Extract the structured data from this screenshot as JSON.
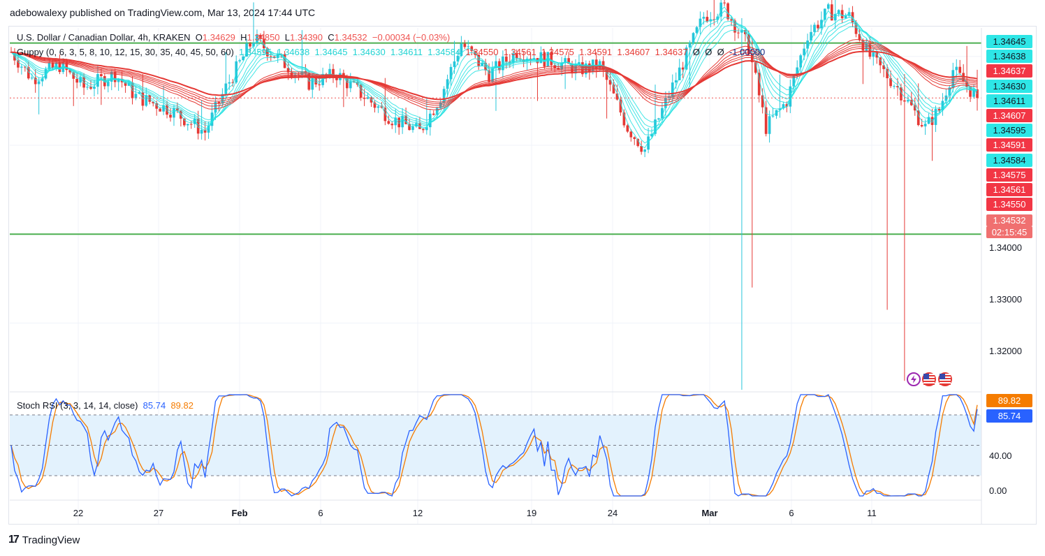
{
  "publisher": "adebowalexy published on TradingView.com, Mar 13, 2024 17:44 UTC",
  "main_legend": {
    "symbol": "U.S. Dollar / Canadian Dollar, 4h, KRAKEN",
    "o_label": "O",
    "o_value": "1.34629",
    "h_label": "H",
    "h_value": "1.34850",
    "l_label": "L",
    "l_value": "1.34390",
    "c_label": "C",
    "c_value": "1.34532",
    "change": "−0.00034 (−0.03%)"
  },
  "guppy_legend": {
    "name": "Guppy (0, 6, 3, 5, 8, 10, 12, 15, 30, 35, 40, 45, 50, 60)",
    "fast_values": [
      "1.34595",
      "1.34638",
      "1.34645",
      "1.34630",
      "1.34611",
      "1.34584"
    ],
    "slow_values": [
      "1.34550",
      "1.34561",
      "1.34575",
      "1.34591",
      "1.34607",
      "1.34637"
    ],
    "empty_marks": [
      "Ø",
      "Ø",
      "Ø"
    ],
    "last_value": "-1.00000"
  },
  "stoch_legend": {
    "name": "Stoch RSI (3, 3, 14, 14, close)",
    "k_value": "85.74",
    "d_value": "89.82"
  },
  "price_axis": {
    "ticks": [
      "1.34000",
      "1.33000",
      "1.32000"
    ],
    "badges": [
      {
        "text": "1.34645",
        "kind": "fast"
      },
      {
        "text": "1.34638",
        "kind": "fast"
      },
      {
        "text": "1.34637",
        "kind": "slow"
      },
      {
        "text": "1.34630",
        "kind": "fast"
      },
      {
        "text": "1.34611",
        "kind": "fast"
      },
      {
        "text": "1.34607",
        "kind": "slow"
      },
      {
        "text": "1.34595",
        "kind": "fast"
      },
      {
        "text": "1.34591",
        "kind": "slow"
      },
      {
        "text": "1.34584",
        "kind": "fast"
      },
      {
        "text": "1.34575",
        "kind": "slow"
      },
      {
        "text": "1.34561",
        "kind": "slow"
      },
      {
        "text": "1.34550",
        "kind": "slow"
      }
    ],
    "last_price": "1.34532",
    "countdown": "02:15:45"
  },
  "stoch_axis": {
    "ticks": [
      "40.00",
      "0.00"
    ],
    "d_badge": "89.82",
    "k_badge": "85.74"
  },
  "time_axis": [
    "22",
    "27",
    "Feb",
    "6",
    "12",
    "19",
    "24",
    "Mar",
    "6",
    "11"
  ],
  "footer": {
    "logo": "17",
    "brand": "TradingView"
  },
  "colors": {
    "up_candle": "#26c6da",
    "down_candle": "#e53935",
    "fast_ema": "#22e0e0",
    "slow_ema": "#e53935",
    "hline": "#4caf50",
    "stoch_k": "#2962ff",
    "stoch_d": "#f57c00",
    "stoch_band": "#e3f2fd",
    "badge_fast_bg": "#2ee6e6",
    "badge_slow_bg": "#f23645"
  },
  "chart_data": [
    {
      "type": "candlestick",
      "title": "U.S. Dollar / Canadian Dollar, 4h, KRAKEN",
      "x_ticks": [
        "22",
        "27",
        "Feb",
        "6",
        "12",
        "19",
        "24",
        "Mar",
        "6",
        "11"
      ],
      "y_ticks": [
        "1.34000",
        "1.33000",
        "1.32000"
      ],
      "ylim": [
        1.3125,
        1.3532
      ],
      "horizontal_lines": [
        1.3515,
        1.33
      ],
      "last": {
        "open": 1.34629,
        "high": 1.3485,
        "low": 1.3439,
        "close": 1.34532
      },
      "trend_anchors": [
        {
          "x": 0,
          "close": 1.3505
        },
        {
          "x": 6,
          "close": 1.3475
        },
        {
          "x": 14,
          "close": 1.349
        },
        {
          "x": 21,
          "close": 1.3465
        },
        {
          "x": 30,
          "close": 1.348
        },
        {
          "x": 36,
          "close": 1.3455
        },
        {
          "x": 46,
          "close": 1.344
        },
        {
          "x": 56,
          "close": 1.3415
        },
        {
          "x": 62,
          "close": 1.3465
        },
        {
          "x": 70,
          "close": 1.352
        },
        {
          "x": 78,
          "close": 1.3495
        },
        {
          "x": 86,
          "close": 1.347
        },
        {
          "x": 94,
          "close": 1.348
        },
        {
          "x": 102,
          "close": 1.3455
        },
        {
          "x": 110,
          "close": 1.343
        },
        {
          "x": 118,
          "close": 1.3415
        },
        {
          "x": 124,
          "close": 1.3455
        },
        {
          "x": 130,
          "close": 1.3515
        },
        {
          "x": 138,
          "close": 1.348
        },
        {
          "x": 146,
          "close": 1.3505
        },
        {
          "x": 156,
          "close": 1.3495
        },
        {
          "x": 164,
          "close": 1.3485
        },
        {
          "x": 170,
          "close": 1.349
        },
        {
          "x": 178,
          "close": 1.342
        },
        {
          "x": 183,
          "close": 1.3395
        },
        {
          "x": 192,
          "close": 1.3475
        },
        {
          "x": 200,
          "close": 1.3545
        },
        {
          "x": 206,
          "close": 1.3555
        },
        {
          "x": 213,
          "close": 1.351
        },
        {
          "x": 218,
          "close": 1.342
        },
        {
          "x": 224,
          "close": 1.345
        },
        {
          "x": 230,
          "close": 1.3525
        },
        {
          "x": 236,
          "close": 1.355
        },
        {
          "x": 242,
          "close": 1.3545
        },
        {
          "x": 248,
          "close": 1.35
        },
        {
          "x": 256,
          "close": 1.3465
        },
        {
          "x": 264,
          "close": 1.342
        },
        {
          "x": 268,
          "close": 1.344
        },
        {
          "x": 272,
          "close": 1.3485
        },
        {
          "x": 279,
          "close": 1.3453
        }
      ],
      "spikes": [
        {
          "x": 211,
          "low": 1.3125,
          "high": 1.3543
        },
        {
          "x": 214,
          "low": 1.324,
          "high": 1.352
        },
        {
          "x": 253,
          "low": 1.3215,
          "high": 1.347
        },
        {
          "x": 258,
          "low": 1.3135,
          "high": 1.348
        }
      ]
    },
    {
      "type": "line",
      "title": "Stoch RSI (3, 3, 14, 14, close)",
      "ylim": [
        0,
        100
      ],
      "y_ticks": [
        "40.00",
        "0.00"
      ],
      "band": [
        20,
        80
      ],
      "series": [
        {
          "name": "K",
          "last": 85.74
        },
        {
          "name": "D",
          "last": 89.82
        }
      ]
    }
  ]
}
